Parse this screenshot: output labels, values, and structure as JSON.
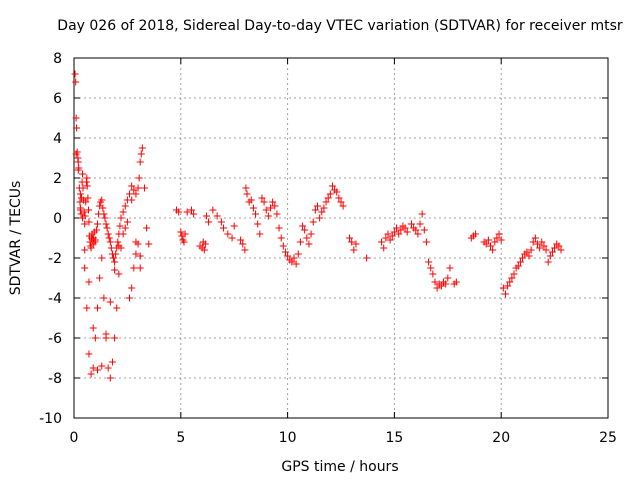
{
  "chart_data": {
    "type": "scatter",
    "title": "Day 026 of 2018, Sidereal Day-to-day VTEC variation (SDTVAR) for receiver mtsr",
    "xlabel": "GPS time / hours",
    "ylabel": "SDTVAR / TECUs",
    "xlim": [
      0,
      25
    ],
    "ylim": [
      -10,
      8
    ],
    "xticks": [
      0,
      5,
      10,
      15,
      20,
      25
    ],
    "yticks": [
      -10,
      -8,
      -6,
      -4,
      -2,
      0,
      2,
      4,
      6,
      8
    ],
    "grid": true,
    "marker": "+",
    "color": "#ff0000",
    "series": [
      {
        "name": "SDTVAR",
        "x": [
          0.05,
          0.08,
          0.1,
          0.12,
          0.15,
          0.18,
          0.2,
          0.22,
          0.25,
          0.28,
          0.3,
          0.33,
          0.35,
          0.38,
          0.4,
          0.42,
          0.45,
          0.48,
          0.5,
          0.52,
          0.55,
          0.58,
          0.6,
          0.62,
          0.65,
          0.68,
          0.7,
          0.72,
          0.75,
          0.78,
          0.8,
          0.82,
          0.85,
          0.88,
          0.9,
          0.92,
          0.95,
          0.98,
          1.0,
          1.05,
          1.1,
          1.15,
          1.2,
          1.25,
          1.3,
          1.35,
          1.4,
          1.45,
          1.5,
          1.55,
          1.6,
          1.65,
          1.7,
          1.75,
          1.8,
          1.85,
          1.9,
          1.95,
          2.0,
          2.05,
          2.1,
          2.15,
          2.2,
          2.3,
          2.4,
          2.5,
          2.6,
          2.7,
          2.8,
          2.9,
          3.0,
          3.05,
          3.1,
          3.15,
          3.2,
          3.3,
          3.4,
          3.5,
          0.1,
          0.2,
          0.3,
          0.4,
          0.5,
          0.6,
          0.7,
          0.8,
          0.9,
          1.0,
          1.1,
          1.2,
          1.3,
          1.4,
          1.5,
          1.6,
          1.7,
          1.8,
          1.9,
          2.0,
          2.1,
          2.2,
          2.4,
          2.6,
          2.7,
          2.8,
          2.9,
          3.0,
          3.1,
          0.3,
          0.5,
          0.7,
          0.9,
          1.1,
          1.3,
          1.5,
          1.7,
          1.9,
          2.1,
          2.3,
          2.5,
          2.7,
          2.9,
          3.1,
          4.8,
          4.9,
          5.0,
          5.05,
          5.1,
          5.15,
          5.2,
          5.3,
          5.5,
          5.6,
          5.9,
          6.0,
          6.05,
          6.1,
          6.15,
          6.2,
          6.3,
          6.5,
          6.7,
          6.9,
          7.0,
          7.2,
          7.4,
          7.5,
          7.8,
          7.9,
          8.0,
          8.05,
          8.1,
          8.2,
          8.3,
          8.4,
          8.5,
          8.6,
          8.7,
          8.8,
          8.9,
          9.0,
          9.1,
          9.2,
          9.3,
          9.4,
          9.5,
          9.6,
          9.7,
          9.8,
          9.9,
          10.0,
          10.1,
          10.2,
          10.3,
          10.4,
          10.5,
          10.6,
          10.7,
          10.8,
          10.9,
          11.0,
          11.1,
          11.2,
          11.3,
          11.4,
          11.5,
          11.6,
          11.7,
          11.8,
          11.9,
          12.0,
          12.1,
          12.2,
          12.3,
          12.4,
          12.5,
          12.6,
          12.9,
          13.0,
          13.1,
          13.2,
          13.7,
          14.4,
          14.5,
          14.6,
          14.7,
          14.8,
          14.9,
          15.0,
          15.1,
          15.2,
          15.3,
          15.4,
          15.5,
          15.6,
          15.8,
          15.9,
          16.0,
          16.1,
          16.2,
          16.3,
          16.4,
          16.5,
          16.6,
          16.7,
          16.8,
          16.9,
          17.0,
          17.1,
          17.2,
          17.3,
          17.4,
          17.5,
          17.6,
          17.8,
          17.9,
          18.6,
          18.7,
          18.8,
          19.2,
          19.3,
          19.4,
          19.5,
          19.6,
          19.7,
          19.8,
          19.9,
          20.0,
          20.1,
          20.2,
          20.3,
          20.4,
          20.5,
          20.6,
          20.7,
          20.8,
          20.9,
          21.0,
          21.1,
          21.2,
          21.3,
          21.4,
          21.5,
          21.6,
          21.7,
          21.8,
          21.9,
          22.0,
          22.1,
          22.2,
          22.3,
          22.4,
          22.5,
          22.6,
          22.7,
          22.8
        ],
        "y": [
          7.2,
          6.8,
          5.0,
          4.5,
          3.3,
          3.0,
          2.8,
          2.5,
          1.5,
          0.8,
          0.5,
          0.2,
          1.0,
          1.8,
          2.2,
          1.5,
          0.9,
          0.3,
          -0.3,
          0.1,
          0.8,
          1.8,
          2.0,
          1.6,
          1.0,
          0.4,
          -0.2,
          -0.9,
          -1.2,
          -1.4,
          -1.5,
          -1.0,
          -0.8,
          -1.1,
          -1.3,
          -1.0,
          -0.7,
          -1.2,
          -1.1,
          -0.6,
          -0.3,
          0.2,
          0.6,
          0.8,
          0.9,
          0.5,
          0.2,
          0.0,
          -0.3,
          -0.5,
          -0.8,
          -1.0,
          -1.2,
          -1.5,
          -1.8,
          -2.0,
          -2.2,
          -1.8,
          -1.5,
          -1.2,
          -0.8,
          -0.4,
          0.0,
          0.3,
          0.6,
          0.9,
          1.2,
          1.6,
          1.4,
          1.2,
          1.5,
          2.0,
          2.8,
          3.2,
          3.5,
          1.5,
          -0.5,
          -1.3,
          3.2,
          2.4,
          1.2,
          0.0,
          -2.5,
          -4.5,
          -6.8,
          -7.8,
          -7.5,
          -6.0,
          -4.5,
          -3.0,
          -2.0,
          -4.0,
          -6.0,
          -7.5,
          -8.0,
          -7.2,
          -6.0,
          -4.5,
          -2.8,
          -1.5,
          -0.5,
          -4.0,
          -3.5,
          -2.5,
          -1.8,
          -1.3,
          -2.5,
          0.4,
          -1.6,
          -3.2,
          -5.5,
          -7.6,
          -7.4,
          -5.8,
          -4.2,
          -2.6,
          -1.4,
          -0.8,
          -0.2,
          0.9,
          -1.2,
          -1.9,
          0.4,
          0.3,
          -0.7,
          -0.9,
          -1.1,
          -1.2,
          -0.8,
          0.3,
          0.4,
          0.2,
          -1.4,
          -1.5,
          -1.2,
          -1.6,
          -1.3,
          0.1,
          -0.2,
          0.4,
          0.1,
          -0.2,
          -0.5,
          -0.8,
          -1.0,
          -0.4,
          -1.1,
          -1.3,
          -1.6,
          1.5,
          1.2,
          0.8,
          0.9,
          0.5,
          0.2,
          -0.3,
          -0.8,
          1.0,
          0.8,
          0.4,
          0.1,
          0.5,
          0.8,
          0.6,
          0.2,
          -0.5,
          -1.0,
          -1.4,
          -1.7,
          -1.9,
          -2.1,
          -2.2,
          -2.0,
          -2.3,
          -1.8,
          -1.2,
          -0.4,
          -0.6,
          -1.0,
          -1.3,
          -0.8,
          -0.2,
          0.4,
          0.6,
          0.0,
          0.3,
          0.5,
          0.8,
          1.0,
          1.2,
          1.6,
          1.4,
          1.3,
          1.0,
          0.8,
          0.6,
          -1.0,
          -1.2,
          -1.6,
          -1.3,
          -2.0,
          -1.2,
          -1.5,
          -1.0,
          -0.8,
          -1.1,
          -0.9,
          -0.7,
          -0.5,
          -0.8,
          -0.6,
          -0.4,
          -0.5,
          -0.7,
          -0.3,
          -0.5,
          -0.6,
          -0.8,
          -0.3,
          0.2,
          -0.6,
          -1.2,
          -2.2,
          -2.5,
          -2.8,
          -3.2,
          -3.5,
          -3.3,
          -3.4,
          -3.2,
          -3.3,
          -3.0,
          -2.5,
          -3.3,
          -3.2,
          -1.0,
          -0.9,
          -0.8,
          -1.2,
          -1.3,
          -1.1,
          -1.4,
          -1.6,
          -1.2,
          -1.0,
          -0.8,
          -1.1,
          -3.5,
          -3.8,
          -3.4,
          -3.2,
          -3.0,
          -2.8,
          -2.5,
          -2.4,
          -2.2,
          -2.0,
          -1.8,
          -1.7,
          -1.9,
          -1.6,
          -1.2,
          -1.0,
          -1.3,
          -1.5,
          -1.2,
          -1.4,
          -1.6,
          -2.2,
          -1.9,
          -1.7,
          -1.5,
          -1.3,
          -1.4,
          -1.6
        ]
      }
    ]
  }
}
